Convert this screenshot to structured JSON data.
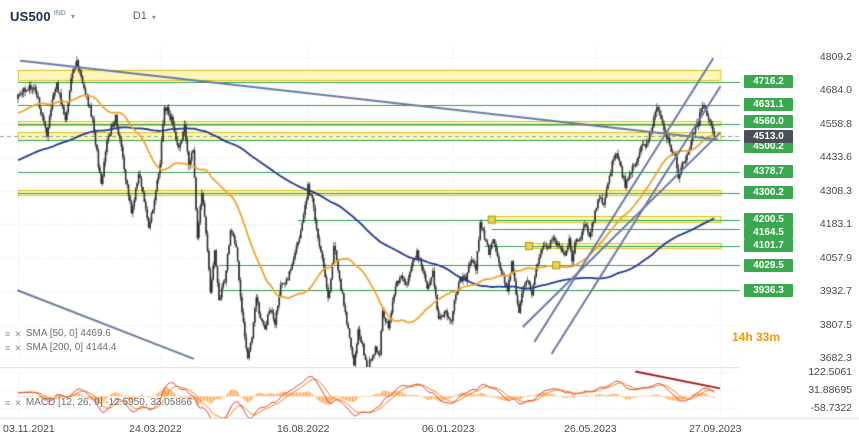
{
  "toolbar": {
    "symbol": "US500",
    "market": "IND",
    "timeframe": "D1"
  },
  "countdown": "14h 33m",
  "legends": {
    "sma50": "SMA [50, 0] 4469.6",
    "sma200": "SMA [200, 0] 4144.4",
    "macd": "MACD [12, 26, 9] -12.5950, 33.05866"
  },
  "colors": {
    "level_green": "#2fa14f",
    "badge_green": "#3aa84f",
    "badge_current": "#4a5058",
    "zone_fill": "rgba(252,238,110,0.5)",
    "zone_border": "#d9c42e",
    "trendline": "#6a7aa2",
    "sma50": "#f0a42e",
    "sma200": "#22388f",
    "macd_hist": "#ffa34d",
    "macd_line": "#e03c31",
    "macd_signal": "#f07d00",
    "macd_drawn_line": "#a61b1b",
    "candle": "#2e2e2e",
    "grid": "#e4e4e4",
    "countdown": "#f59b00"
  },
  "chart_data": {
    "type": "candlestick",
    "symbol": "US500",
    "timeframe": "D1",
    "x_range": [
      "03.11.2021",
      "27.09.2023"
    ],
    "y_axis_ticks": [
      "4809.2",
      "4684.0",
      "4558.8",
      "4433.6",
      "4308.3",
      "4183.1",
      "4057.9",
      "3932.7",
      "3807.5",
      "3682.3"
    ],
    "macd_axis_ticks": [
      "122.5061",
      "31.88695",
      "-58.7322"
    ],
    "x_axis_ticks": [
      {
        "label": "03.11.2021",
        "day": 0
      },
      {
        "label": "24.03.2022",
        "day": 99
      },
      {
        "label": "16.08.2022",
        "day": 202
      },
      {
        "label": "06.01.2023",
        "day": 303
      },
      {
        "label": "26.05.2023",
        "day": 402
      },
      {
        "label": "27.09.2023",
        "day": 489
      }
    ],
    "last_price": {
      "label": "4513.0",
      "value": 4513.0
    },
    "levels": [
      {
        "label": "4716.2",
        "price": 4716.2,
        "from_day": 0,
        "dy": 0
      },
      {
        "label": "4631.1",
        "price": 4631.1,
        "from_day": 0,
        "dy": 0
      },
      {
        "label": "4560.0",
        "price": 4560.0,
        "from_day": 0,
        "dy": -2
      },
      {
        "label": "4500.2",
        "price": 4500.2,
        "from_day": 0,
        "dy": 7
      },
      {
        "label": "4378.7",
        "price": 4378.7,
        "from_day": 0,
        "dy": 0
      },
      {
        "label": "4300.2",
        "price": 4300.2,
        "from_day": 0,
        "dy": 0
      },
      {
        "label": "4200.5",
        "price": 4200.5,
        "from_day": 195,
        "dy": 0
      },
      {
        "label": "4164.5",
        "price": 4164.5,
        "from_day": 330,
        "dy": 3
      },
      {
        "label": "4101.7",
        "price": 4101.7,
        "from_day": 325,
        "dy": 0
      },
      {
        "label": "4029.5",
        "price": 4029.5,
        "from_day": 140,
        "dy": 0
      },
      {
        "label": "3936.3",
        "price": 3936.3,
        "from_day": 140,
        "dy": 0
      }
    ],
    "zones": [
      {
        "top": 4762,
        "bottom": 4718,
        "from_day": 0,
        "to_day": 490
      },
      {
        "top": 4568,
        "bottom": 4552,
        "from_day": 0,
        "to_day": 490
      },
      {
        "top": 4527,
        "bottom": 4494,
        "from_day": 0,
        "to_day": 490
      },
      {
        "top": 4312,
        "bottom": 4289,
        "from_day": 0,
        "to_day": 490
      },
      {
        "top": 4213,
        "bottom": 4188,
        "from_day": 330,
        "to_day": 490
      },
      {
        "top": 4113,
        "bottom": 4089,
        "from_day": 356,
        "to_day": 490
      }
    ],
    "trendlines": [
      {
        "d1": 2,
        "p1": 4795,
        "d2": 487,
        "p2": 4500
      },
      {
        "d1": 0,
        "p1": 3935,
        "d2": 122,
        "p2": 3680
      },
      {
        "d1": 360,
        "p1": 3745,
        "d2": 484,
        "p2": 4802
      },
      {
        "d1": 372,
        "p1": 3700,
        "d2": 489,
        "p2": 4697
      },
      {
        "d1": 352,
        "p1": 3800,
        "d2": 489,
        "p2": 4525
      }
    ],
    "macd_trendline": {
      "d1": 430,
      "v1": 125,
      "d2": 489,
      "v2": 40
    },
    "order_markers": [
      {
        "day": 330,
        "price": 4200.5
      },
      {
        "day": 356,
        "price": 4101.7
      },
      {
        "day": 375,
        "price": 4029.5
      }
    ],
    "indicators": [
      {
        "name": "SMA",
        "params": [
          50,
          0
        ],
        "value": 4469.6
      },
      {
        "name": "SMA",
        "params": [
          200,
          0
        ],
        "value": 4144.4
      },
      {
        "name": "MACD",
        "params": [
          12,
          26,
          9
        ],
        "values": [
          -12.595,
          33.05866
        ]
      }
    ],
    "price_path_anchors": [
      [
        0,
        4660
      ],
      [
        6,
        4692
      ],
      [
        11,
        4688
      ],
      [
        15,
        4630
      ],
      [
        20,
        4513
      ],
      [
        24,
        4660
      ],
      [
        27,
        4712
      ],
      [
        31,
        4620
      ],
      [
        33,
        4568
      ],
      [
        37,
        4725
      ],
      [
        41,
        4796
      ],
      [
        46,
        4700
      ],
      [
        52,
        4577
      ],
      [
        58,
        4326
      ],
      [
        61,
        4450
      ],
      [
        63,
        4515
      ],
      [
        68,
        4587
      ],
      [
        73,
        4430
      ],
      [
        79,
        4225
      ],
      [
        82,
        4306
      ],
      [
        84,
        4380
      ],
      [
        88,
        4260
      ],
      [
        91,
        4173
      ],
      [
        95,
        4262
      ],
      [
        99,
        4420
      ],
      [
        102,
        4631
      ],
      [
        107,
        4575
      ],
      [
        112,
        4460
      ],
      [
        116,
        4550
      ],
      [
        119,
        4393
      ],
      [
        122,
        4460
      ],
      [
        125,
        4131
      ],
      [
        128,
        4300
      ],
      [
        131,
        4155
      ],
      [
        134,
        3935
      ],
      [
        137,
        4088
      ],
      [
        140,
        3901
      ],
      [
        144,
        3973
      ],
      [
        148,
        4158
      ],
      [
        152,
        4108
      ],
      [
        155,
        3900
      ],
      [
        160,
        3674
      ],
      [
        163,
        3768
      ],
      [
        166,
        3912
      ],
      [
        169,
        3821
      ],
      [
        172,
        3790
      ],
      [
        175,
        3863
      ],
      [
        179,
        3818
      ],
      [
        183,
        3960
      ],
      [
        187,
        3970
      ],
      [
        191,
        4023
      ],
      [
        195,
        4118
      ],
      [
        199,
        4207
      ],
      [
        202,
        4325
      ],
      [
        205,
        4274
      ],
      [
        209,
        4140
      ],
      [
        213,
        4030
      ],
      [
        216,
        3908
      ],
      [
        218,
        3979
      ],
      [
        220,
        4110
      ],
      [
        224,
        3979
      ],
      [
        228,
        3850
      ],
      [
        231,
        3757
      ],
      [
        234,
        3663
      ],
      [
        237,
        3782
      ],
      [
        240,
        3725
      ],
      [
        243,
        3645
      ],
      [
        246,
        3678
      ],
      [
        249,
        3720
      ],
      [
        252,
        3695
      ],
      [
        254,
        3862
      ],
      [
        258,
        3790
      ],
      [
        263,
        3958
      ],
      [
        267,
        3992
      ],
      [
        270,
        3946
      ],
      [
        274,
        4020
      ],
      [
        278,
        4078
      ],
      [
        281,
        4028
      ],
      [
        285,
        3940
      ],
      [
        289,
        3998
      ],
      [
        293,
        3822
      ],
      [
        296,
        3845
      ],
      [
        299,
        3849
      ],
      [
        302,
        3824
      ],
      [
        305,
        3920
      ],
      [
        308,
        3980
      ],
      [
        312,
        3978
      ],
      [
        316,
        4060
      ],
      [
        319,
        4016
      ],
      [
        322,
        4194
      ],
      [
        325,
        4130
      ],
      [
        328,
        4080
      ],
      [
        331,
        4136
      ],
      [
        334,
        4060
      ],
      [
        338,
        3982
      ],
      [
        341,
        3940
      ],
      [
        344,
        4048
      ],
      [
        347,
        3920
      ],
      [
        349,
        3856
      ],
      [
        352,
        3948
      ],
      [
        355,
        3968
      ],
      [
        358,
        3916
      ],
      [
        362,
        4045
      ],
      [
        366,
        4100
      ],
      [
        370,
        4105
      ],
      [
        372,
        4137
      ],
      [
        375,
        4108
      ],
      [
        378,
        4092
      ],
      [
        381,
        4055
      ],
      [
        384,
        4135
      ],
      [
        386,
        4048
      ],
      [
        389,
        4136
      ],
      [
        392,
        4124
      ],
      [
        395,
        4190
      ],
      [
        398,
        4145
      ],
      [
        401,
        4205
      ],
      [
        404,
        4282
      ],
      [
        408,
        4267
      ],
      [
        411,
        4348
      ],
      [
        414,
        4410
      ],
      [
        417,
        4450
      ],
      [
        420,
        4388
      ],
      [
        423,
        4330
      ],
      [
        426,
        4378
      ],
      [
        430,
        4410
      ],
      [
        433,
        4455
      ],
      [
        436,
        4478
      ],
      [
        439,
        4495
      ],
      [
        442,
        4555
      ],
      [
        445,
        4607
      ],
      [
        448,
        4582
      ],
      [
        450,
        4536
      ],
      [
        453,
        4500
      ],
      [
        455,
        4468
      ],
      [
        458,
        4436
      ],
      [
        460,
        4346
      ],
      [
        463,
        4405
      ],
      [
        466,
        4436
      ],
      [
        469,
        4488
      ],
      [
        471,
        4536
      ],
      [
        474,
        4566
      ],
      [
        476,
        4626
      ],
      [
        478,
        4612
      ],
      [
        480,
        4598
      ],
      [
        482,
        4560
      ],
      [
        484,
        4530
      ],
      [
        485,
        4513
      ]
    ]
  }
}
